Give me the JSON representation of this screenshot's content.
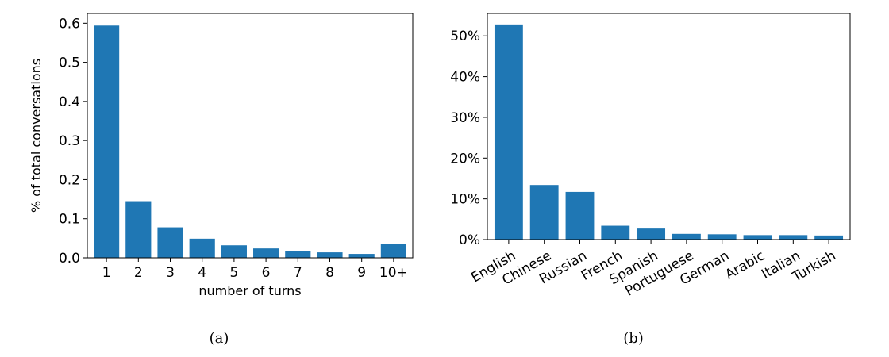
{
  "captions": {
    "a": "(a)",
    "b": "(b)"
  },
  "chart_data": [
    {
      "type": "bar",
      "categories": [
        "1",
        "2",
        "3",
        "4",
        "5",
        "6",
        "7",
        "8",
        "9",
        "10+"
      ],
      "values": [
        0.594,
        0.145,
        0.078,
        0.049,
        0.032,
        0.024,
        0.018,
        0.014,
        0.01,
        0.036
      ],
      "xlabel": "number of turns",
      "ylabel": "% of total conversations",
      "ylim": [
        0,
        0.625
      ],
      "yticks": [
        0.0,
        0.1,
        0.2,
        0.3,
        0.4,
        0.5,
        0.6
      ],
      "ytick_labels": [
        "0.0",
        "0.1",
        "0.2",
        "0.3",
        "0.4",
        "0.5",
        "0.6"
      ],
      "grid": false,
      "color": "#1f77b4"
    },
    {
      "type": "bar",
      "categories": [
        "English",
        "Chinese",
        "Russian",
        "French",
        "Spanish",
        "Portuguese",
        "German",
        "Arabic",
        "Italian",
        "Turkish"
      ],
      "values": [
        52.8,
        13.4,
        11.7,
        3.4,
        2.7,
        1.4,
        1.3,
        1.1,
        1.1,
        1.0
      ],
      "xlabel": "",
      "ylabel": "",
      "ylim": [
        0,
        55.5
      ],
      "yticks": [
        0,
        10,
        20,
        30,
        40,
        50
      ],
      "ytick_labels": [
        "0%",
        "10%",
        "20%",
        "30%",
        "40%",
        "50%"
      ],
      "grid": false,
      "color": "#1f77b4"
    }
  ]
}
